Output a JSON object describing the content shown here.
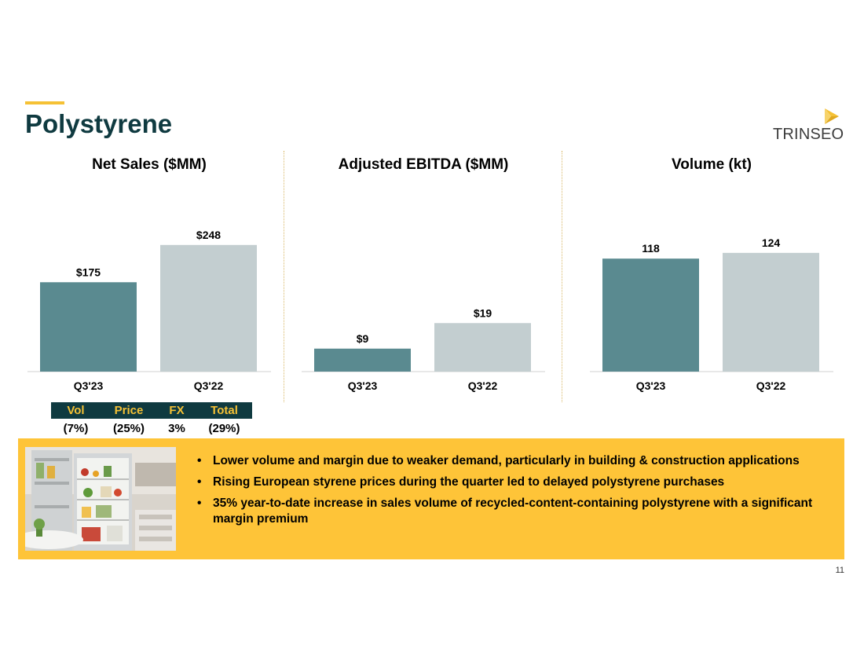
{
  "page": {
    "title": "Polystyrene",
    "page_number": "11"
  },
  "logo": {
    "text": "TRINSEO",
    "colors": {
      "mark": "#f5c135",
      "text": "#3c3c3c"
    }
  },
  "colors": {
    "current": "#5a8a90",
    "prior": "#c3ced0",
    "accent": "#f5c135",
    "dark": "#0f3a40",
    "callout": "#fec438"
  },
  "chart_data": [
    {
      "type": "bar",
      "title": "Net Sales ($MM)",
      "categories": [
        "Q3'23",
        "Q3'22"
      ],
      "values": [
        175,
        248
      ],
      "labels": [
        "$175",
        "$248"
      ],
      "ylim": [
        0,
        300
      ],
      "grid": false
    },
    {
      "type": "bar",
      "title": "Adjusted EBITDA ($MM)",
      "categories": [
        "Q3'23",
        "Q3'22"
      ],
      "values": [
        9,
        19
      ],
      "labels": [
        "$9",
        "$19"
      ],
      "ylim": [
        0,
        60
      ],
      "grid": false
    },
    {
      "type": "bar",
      "title": "Volume (kt)",
      "categories": [
        "Q3'23",
        "Q3'22"
      ],
      "values": [
        118,
        124
      ],
      "labels": [
        "118",
        "124"
      ],
      "ylim": [
        0,
        160
      ],
      "grid": false
    }
  ],
  "bridge": {
    "headers": [
      "Vol",
      "Price",
      "FX",
      "Total"
    ],
    "values": [
      "(7%)",
      "(25%)",
      "3%",
      "(29%)"
    ]
  },
  "callout": {
    "image_icon": "open-refrigerator-kitchen-photo",
    "bullets": [
      "Lower volume and margin due to weaker demand, particularly in building & construction applications",
      "Rising European styrene prices during the quarter led to delayed polystyrene purchases",
      "35% year-to-date increase in sales volume of recycled-content-containing polystyrene with a significant margin premium"
    ]
  }
}
